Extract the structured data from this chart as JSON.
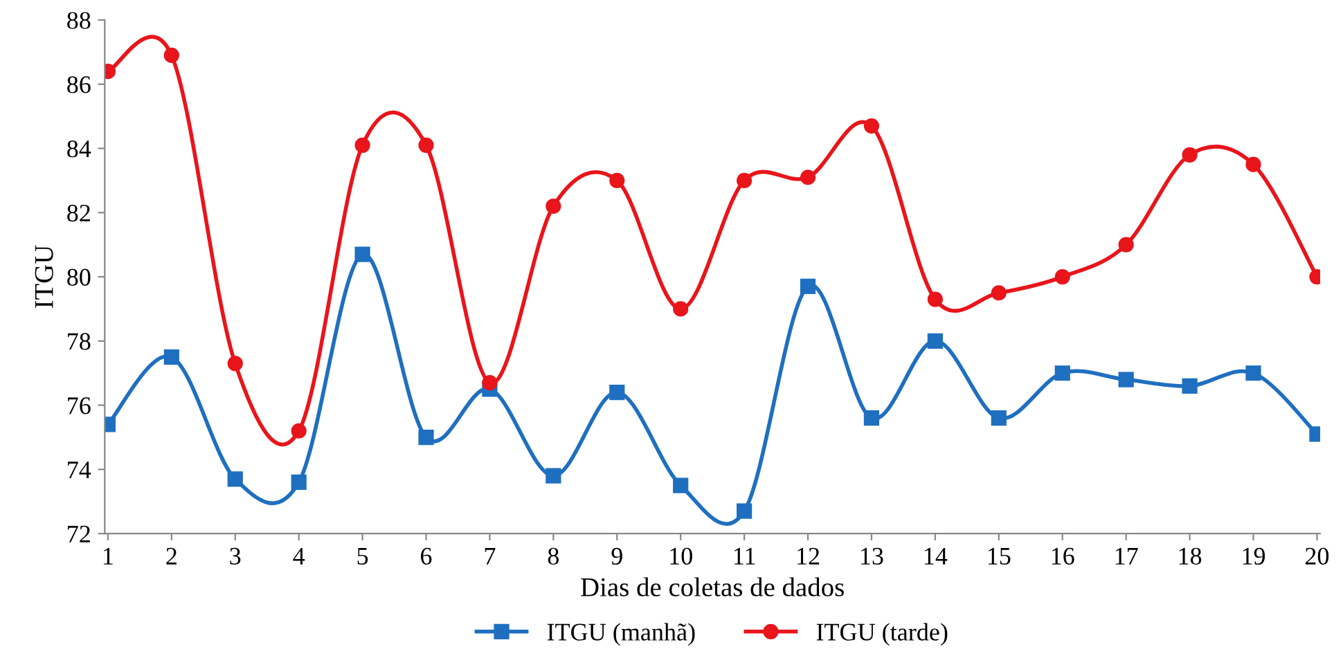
{
  "chart_data": {
    "type": "line",
    "xlabel": "Dias de coletas de dados",
    "ylabel": "ITGU",
    "categories": [
      "1",
      "2",
      "3",
      "4",
      "5",
      "6",
      "7",
      "8",
      "9",
      "10",
      "11",
      "12",
      "13",
      "14",
      "15",
      "16",
      "17",
      "18",
      "19",
      "20"
    ],
    "series": [
      {
        "name": "ITGU (manhã)",
        "color": "#1f6fc0",
        "marker": "square",
        "values": [
          75.4,
          77.5,
          73.7,
          73.6,
          80.7,
          75.0,
          76.5,
          73.8,
          76.4,
          73.5,
          72.7,
          79.7,
          75.6,
          78.0,
          75.6,
          77.0,
          76.8,
          76.6,
          77.0,
          75.1
        ]
      },
      {
        "name": "ITGU (tarde)",
        "color": "#e8151b",
        "marker": "circle",
        "values": [
          86.4,
          86.9,
          77.3,
          75.2,
          84.1,
          84.1,
          76.7,
          82.2,
          83.0,
          79.0,
          83.0,
          83.1,
          84.7,
          79.3,
          79.5,
          80.0,
          81.0,
          83.8,
          83.5,
          80.0
        ]
      }
    ],
    "ylim": [
      72,
      88
    ],
    "yticks": [
      72,
      74,
      76,
      78,
      80,
      82,
      84,
      86,
      88
    ],
    "grid": false,
    "legend": "bottom",
    "line_style": "solid"
  }
}
